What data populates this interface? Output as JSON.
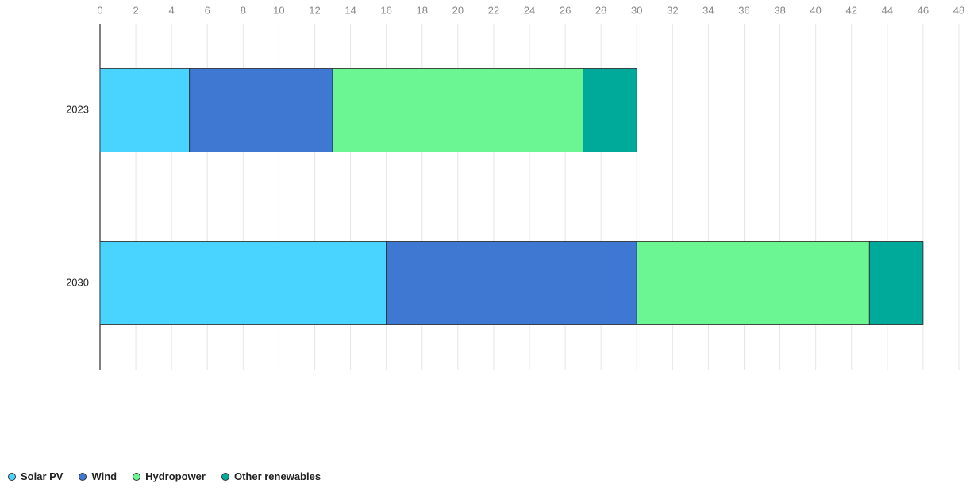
{
  "chart_data": {
    "type": "stacked-bar-horizontal",
    "categories": [
      "2023",
      "2030"
    ],
    "series": [
      {
        "name": "Solar PV",
        "color": "#48d4ff",
        "values": [
          5,
          16
        ]
      },
      {
        "name": "Wind",
        "color": "#3e78d2",
        "values": [
          8,
          14
        ]
      },
      {
        "name": "Hydropower",
        "color": "#6bf593",
        "values": [
          14,
          13
        ]
      },
      {
        "name": "Other renewables",
        "color": "#00aa9a",
        "values": [
          3,
          3
        ]
      }
    ],
    "xlim": [
      0,
      48
    ],
    "xticks": [
      0,
      2,
      4,
      6,
      8,
      10,
      12,
      14,
      16,
      18,
      20,
      22,
      24,
      26,
      28,
      30,
      32,
      34,
      36,
      38,
      40,
      42,
      44,
      46,
      48
    ],
    "grid": true,
    "legend": "bottom-left"
  }
}
